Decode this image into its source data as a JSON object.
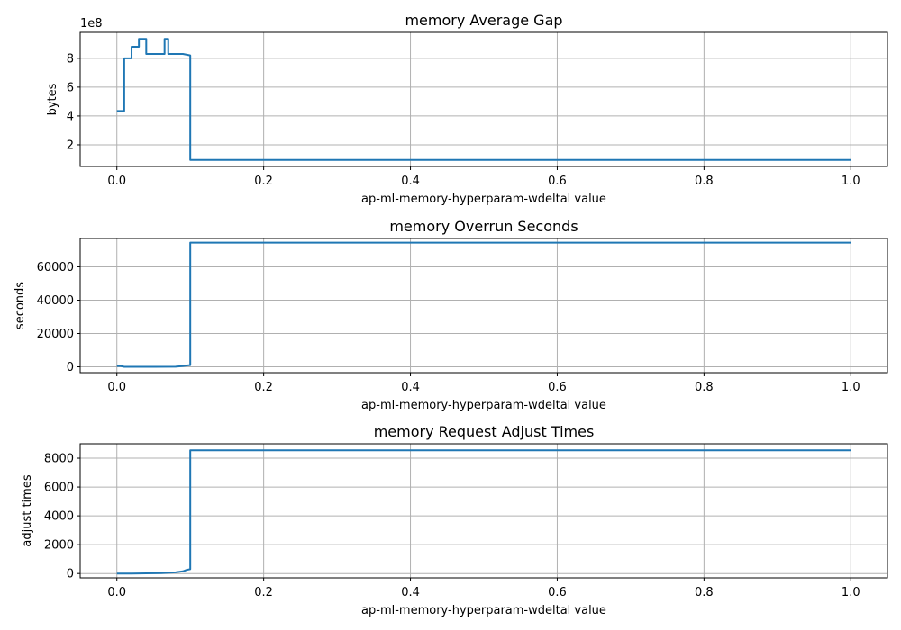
{
  "chart_data": [
    {
      "type": "line",
      "title": "memory Average Gap",
      "xlabel": "ap-ml-memory-hyperparam-wdeltal value",
      "ylabel": "bytes",
      "offset_label": "1e8",
      "y_scale_factor": 100000000,
      "xlim": [
        -0.05,
        1.05
      ],
      "ylim": [
        0.5,
        9.8
      ],
      "xticks": [
        0.0,
        0.2,
        0.4,
        0.6,
        0.8,
        1.0
      ],
      "xtick_labels": [
        "0.0",
        "0.2",
        "0.4",
        "0.6",
        "0.8",
        "1.0"
      ],
      "yticks": [
        2,
        4,
        6,
        8
      ],
      "ytick_labels": [
        "2",
        "4",
        "6",
        "8"
      ],
      "grid": true,
      "color": "#1f77b4",
      "series": [
        {
          "x": [
            0.0,
            0.01,
            0.01,
            0.02,
            0.02,
            0.03,
            0.03,
            0.04,
            0.04,
            0.065,
            0.065,
            0.07,
            0.07,
            0.09,
            0.1,
            0.1,
            1.0
          ],
          "y": [
            4.35,
            4.35,
            8.0,
            8.0,
            8.8,
            8.8,
            9.35,
            9.35,
            8.3,
            8.3,
            9.35,
            9.35,
            8.3,
            8.3,
            8.2,
            0.95,
            0.95
          ]
        }
      ]
    },
    {
      "type": "line",
      "title": "memory Overrun Seconds",
      "xlabel": "ap-ml-memory-hyperparam-wdeltal value",
      "ylabel": "seconds",
      "xlim": [
        -0.05,
        1.05
      ],
      "ylim": [
        -3500,
        77000
      ],
      "xticks": [
        0.0,
        0.2,
        0.4,
        0.6,
        0.8,
        1.0
      ],
      "xtick_labels": [
        "0.0",
        "0.2",
        "0.4",
        "0.6",
        "0.8",
        "1.0"
      ],
      "yticks": [
        0,
        20000,
        40000,
        60000
      ],
      "ytick_labels": [
        "0",
        "20000",
        "40000",
        "60000"
      ],
      "grid": true,
      "color": "#1f77b4",
      "series": [
        {
          "x": [
            0.0,
            0.005,
            0.01,
            0.02,
            0.05,
            0.08,
            0.09,
            0.095,
            0.1,
            0.1,
            1.0
          ],
          "y": [
            500,
            500,
            0,
            0,
            0,
            100,
            500,
            800,
            1000,
            74500,
            74500
          ]
        }
      ]
    },
    {
      "type": "line",
      "title": "memory Request Adjust Times",
      "xlabel": "ap-ml-memory-hyperparam-wdeltal value",
      "ylabel": "adjust times",
      "xlim": [
        -0.05,
        1.05
      ],
      "ylim": [
        -300,
        9000
      ],
      "xticks": [
        0.0,
        0.2,
        0.4,
        0.6,
        0.8,
        1.0
      ],
      "xtick_labels": [
        "0.0",
        "0.2",
        "0.4",
        "0.6",
        "0.8",
        "1.0"
      ],
      "yticks": [
        0,
        2000,
        4000,
        6000,
        8000
      ],
      "ytick_labels": [
        "0",
        "2000",
        "4000",
        "6000",
        "8000"
      ],
      "grid": true,
      "color": "#1f77b4",
      "series": [
        {
          "x": [
            0.0,
            0.02,
            0.04,
            0.06,
            0.08,
            0.09,
            0.095,
            0.1,
            0.1,
            1.0
          ],
          "y": [
            0,
            0,
            10,
            30,
            80,
            150,
            250,
            300,
            8550,
            8550
          ]
        }
      ]
    }
  ]
}
